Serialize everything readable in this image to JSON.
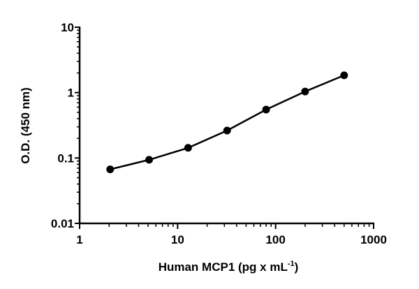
{
  "chart_data": {
    "type": "line",
    "title": "",
    "xlabel": "Human MCP1 (pg x mL",
    "xlabel_superscript": "-1",
    "xlabel_close": ")",
    "ylabel": "O.D. (450 nm)",
    "xscale": "log",
    "yscale": "log",
    "xlim": [
      1,
      1000
    ],
    "ylim": [
      0.01,
      10
    ],
    "xticks": [
      "1",
      "10",
      "100",
      "1000"
    ],
    "yticks": [
      "0.01",
      "0.1",
      "1",
      "10"
    ],
    "grid": false,
    "marker": "filled-circle",
    "color": "#000000",
    "series": [
      {
        "x": [
          2.05,
          5.12,
          12.8,
          32,
          80,
          200,
          500
        ],
        "y": [
          0.067,
          0.094,
          0.143,
          0.263,
          0.55,
          1.04,
          1.84
        ]
      }
    ]
  }
}
